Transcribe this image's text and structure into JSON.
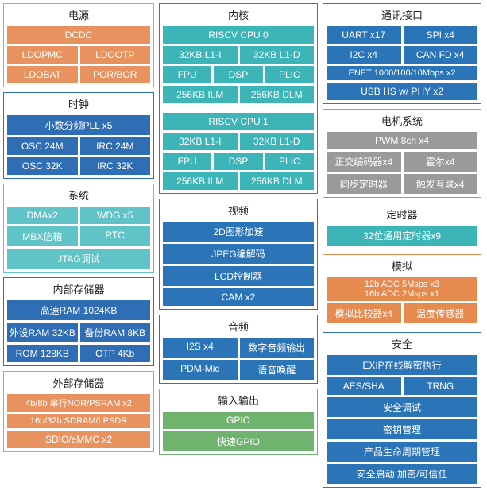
{
  "colors": {
    "orange": "#e8925f",
    "orange_border": "#e8925f",
    "blue": "#2f6db5",
    "blue_border": "#2f6db5",
    "cyan": "#5fc3c7",
    "cyan_border": "#5fc3c7",
    "teal": "#3cb4b8",
    "teal_border": "#2c7bbd",
    "navy": "#2b74b8",
    "navy_border": "#2b74b8",
    "gray": "#9a9a9a",
    "gray_border": "#9a9a9a",
    "green": "#6fb36f",
    "dkorange": "#e68a4f"
  },
  "col1": [
    {
      "title": "电源",
      "border": "#e8925f",
      "fill": "#e8925f",
      "rows": [
        [
          {
            "t": "DCDC"
          }
        ],
        [
          {
            "t": "LDOPMC"
          },
          {
            "t": "LDOOTP"
          }
        ],
        [
          {
            "t": "LDOBAT"
          },
          {
            "t": "POR/BOR"
          }
        ]
      ]
    },
    {
      "title": "时钟",
      "border": "#2f6db5",
      "fill": "#2f6db5",
      "rows": [
        [
          {
            "t": "小数分频PLL x5"
          }
        ],
        [
          {
            "t": "OSC 24M"
          },
          {
            "t": "IRC 24M"
          }
        ],
        [
          {
            "t": "OSC 32K"
          },
          {
            "t": "IRC 32K"
          }
        ]
      ]
    },
    {
      "title": "系统",
      "border": "#5fc3c7",
      "fill": "#5fc3c7",
      "rows": [
        [
          {
            "t": "DMAx2"
          },
          {
            "t": "WDG x5"
          }
        ],
        [
          {
            "t": "MBX信箱"
          },
          {
            "t": "RTC"
          }
        ],
        [
          {
            "t": "JTAG调试"
          }
        ]
      ]
    },
    {
      "title": "内部存储器",
      "border": "#2f6db5",
      "fill": "#2f6db5",
      "rows": [
        [
          {
            "t": "高速RAM 1024KB"
          }
        ],
        [
          {
            "t": "外设RAM 32KB"
          },
          {
            "t": "备份RAM 8KB"
          }
        ],
        [
          {
            "t": "ROM 128KB"
          },
          {
            "t": "OTP 4Kb"
          }
        ]
      ]
    },
    {
      "title": "外部存储器",
      "border": "#e8925f",
      "fill": "#e8925f",
      "rows": [
        [
          {
            "t": "4b/8b 串行NOR/PSRAM x2"
          }
        ],
        [
          {
            "t": "16b/32b SDRAM/LPSDR"
          }
        ],
        [
          {
            "t": "SDIO/eMMC x2"
          }
        ]
      ]
    }
  ],
  "col2": [
    {
      "title": "内核",
      "border": "#2c7bbd",
      "fill": "#3cb4b8",
      "rows": [
        [
          {
            "t": "RISCV CPU 0"
          }
        ],
        [
          {
            "t": "32KB L1-I"
          },
          {
            "t": "32KB L1-D"
          }
        ],
        [
          {
            "t": "FPU"
          },
          {
            "t": "DSP"
          },
          {
            "t": "PLIC"
          }
        ],
        [
          {
            "t": "256KB ILM"
          },
          {
            "t": "256KB DLM"
          }
        ],
        [
          {
            "t": "RISCV CPU 1"
          }
        ],
        [
          {
            "t": "32KB L1-I"
          },
          {
            "t": "32KB L1-D"
          }
        ],
        [
          {
            "t": "FPU"
          },
          {
            "t": "DSP"
          },
          {
            "t": "PLIC"
          }
        ],
        [
          {
            "t": "256KB ILM"
          },
          {
            "t": "256KB DLM"
          }
        ]
      ],
      "spacers": [
        0,
        4
      ]
    },
    {
      "title": "视频",
      "border": "#2b74b8",
      "fill": "#2b74b8",
      "rows": [
        [
          {
            "t": "2D图形加速"
          }
        ],
        [
          {
            "t": "JPEG编解码"
          }
        ],
        [
          {
            "t": "LCD控制器"
          }
        ],
        [
          {
            "t": "CAM x2"
          }
        ]
      ]
    },
    {
      "title": "音频",
      "border": "#2b74b8",
      "fill": "#2b74b8",
      "rows": [
        [
          {
            "t": "I2S x4"
          },
          {
            "t": "数字音频输出"
          }
        ],
        [
          {
            "t": "PDM-Mic"
          },
          {
            "t": "语音唤醒"
          }
        ]
      ]
    },
    {
      "title": "输入输出",
      "border": "#6fb36f",
      "fill": "#6fb36f",
      "rows": [
        [
          {
            "t": "GPIO"
          }
        ],
        [
          {
            "t": "快速GPIO"
          }
        ]
      ]
    }
  ],
  "col3": [
    {
      "title": "通讯接口",
      "border": "#2b74b8",
      "fill": "#2b74b8",
      "rows": [
        [
          {
            "t": "UART x17"
          },
          {
            "t": "SPI x4"
          }
        ],
        [
          {
            "t": "I2C x4"
          },
          {
            "t": "CAN FD x4"
          }
        ],
        [
          {
            "t": "ENET 1000/100/10Mbps x2"
          }
        ],
        [
          {
            "t": "USB HS w/ PHY x2"
          }
        ]
      ]
    },
    {
      "title": "电机系统",
      "border": "#9a9a9a",
      "fill": "#9a9a9a",
      "rows": [
        [
          {
            "t": "PWM 8ch x4"
          }
        ],
        [
          {
            "t": "正交编码器x4"
          },
          {
            "t": "霍尔x4"
          }
        ],
        [
          {
            "t": "同步定时器"
          },
          {
            "t": "触发互联x4"
          }
        ]
      ]
    },
    {
      "title": "定时器",
      "border": "#3cb4b8",
      "fill": "#3cb4b8",
      "rows": [
        [
          {
            "t": "32位通用定时器x9"
          }
        ]
      ]
    },
    {
      "title": "模拟",
      "border": "#e68a4f",
      "fill": "#e68a4f",
      "rows": [
        [
          {
            "t": "12b ADC 5Msps x3\n16b ADC 2Msps x1",
            "multi": true
          }
        ],
        [
          {
            "t": "模拟比较器x4"
          },
          {
            "t": "温度传感器"
          }
        ]
      ]
    },
    {
      "title": "安全",
      "border": "#2b74b8",
      "fill": "#2b74b8",
      "rows": [
        [
          {
            "t": "EXIP在线解密执行"
          }
        ],
        [
          {
            "t": "AES/SHA"
          },
          {
            "t": "TRNG"
          }
        ],
        [
          {
            "t": "安全调试"
          }
        ],
        [
          {
            "t": "密钥管理"
          }
        ],
        [
          {
            "t": "产品生命周期管理"
          }
        ],
        [
          {
            "t": "安全启动 加密/可信任"
          }
        ]
      ]
    }
  ]
}
